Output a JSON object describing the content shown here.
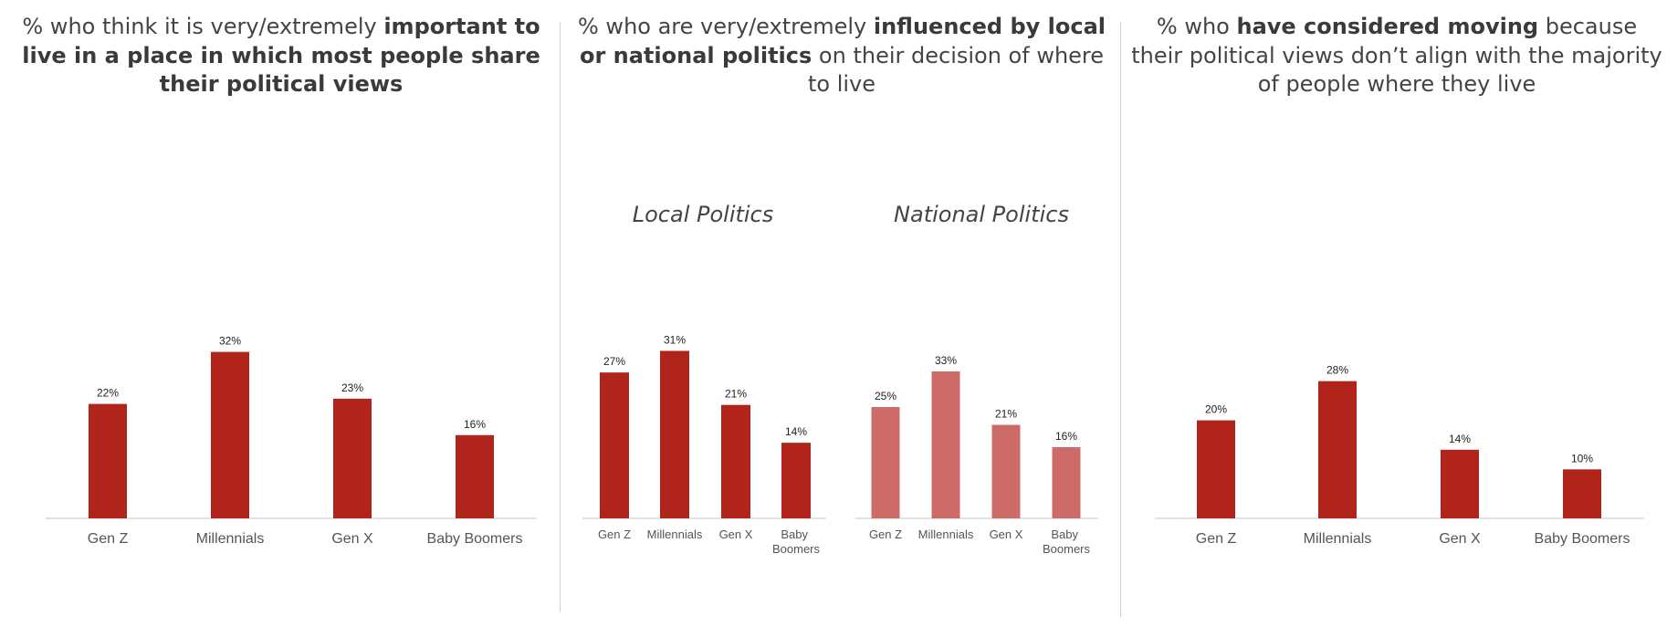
{
  "panels": {
    "p1": {
      "t_pre": "% who think it is very/extremely ",
      "t_bold": "important to live in a place in which most people share their political views",
      "t_post": ""
    },
    "p2": {
      "t_pre": "% who are very/extremely ",
      "t_bold": "influenced by local or national politics",
      "t_post": " on their decision of where to live",
      "local_label": "Local Politics",
      "national_label": "National Politics"
    },
    "p3": {
      "t_pre": "% who ",
      "t_bold": "have considered moving",
      "t_post": " because their political views don’t align with the majority of people where they live"
    }
  },
  "colors": {
    "dark_red": "#b0241b",
    "light_red": "#cd6b68",
    "baseline": "#d9d9d9"
  },
  "chart_data": [
    {
      "type": "bar",
      "categories": [
        "Gen Z",
        "Millennials",
        "Gen X",
        "Baby Boomers"
      ],
      "values": [
        22,
        32,
        23,
        16
      ],
      "value_labels": [
        "22%",
        "32%",
        "23%",
        "16%"
      ],
      "title": "% who think it is very/extremely important to live in a place in which most people share their political views"
    },
    {
      "type": "bar",
      "categories": [
        "Gen Z",
        "Millennials",
        "Gen X",
        "Baby Boomers"
      ],
      "values": [
        27,
        31,
        21,
        14
      ],
      "value_labels": [
        "27%",
        "31%",
        "21%",
        "14%"
      ],
      "title": "Local Politics"
    },
    {
      "type": "bar",
      "categories": [
        "Gen Z",
        "Millennials",
        "Gen X",
        "Baby Boomers"
      ],
      "values": [
        25,
        33,
        21,
        16
      ],
      "value_labels": [
        "25%",
        "33%",
        "21%",
        "16%"
      ],
      "title": "National Politics"
    },
    {
      "type": "bar",
      "categories": [
        "Gen Z",
        "Millennials",
        "Gen X",
        "Baby Boomers"
      ],
      "values": [
        20,
        28,
        14,
        10
      ],
      "value_labels": [
        "20%",
        "28%",
        "14%",
        "10%"
      ],
      "title": "% who have considered moving because their political views don’t align with the majority of people where they live"
    }
  ]
}
